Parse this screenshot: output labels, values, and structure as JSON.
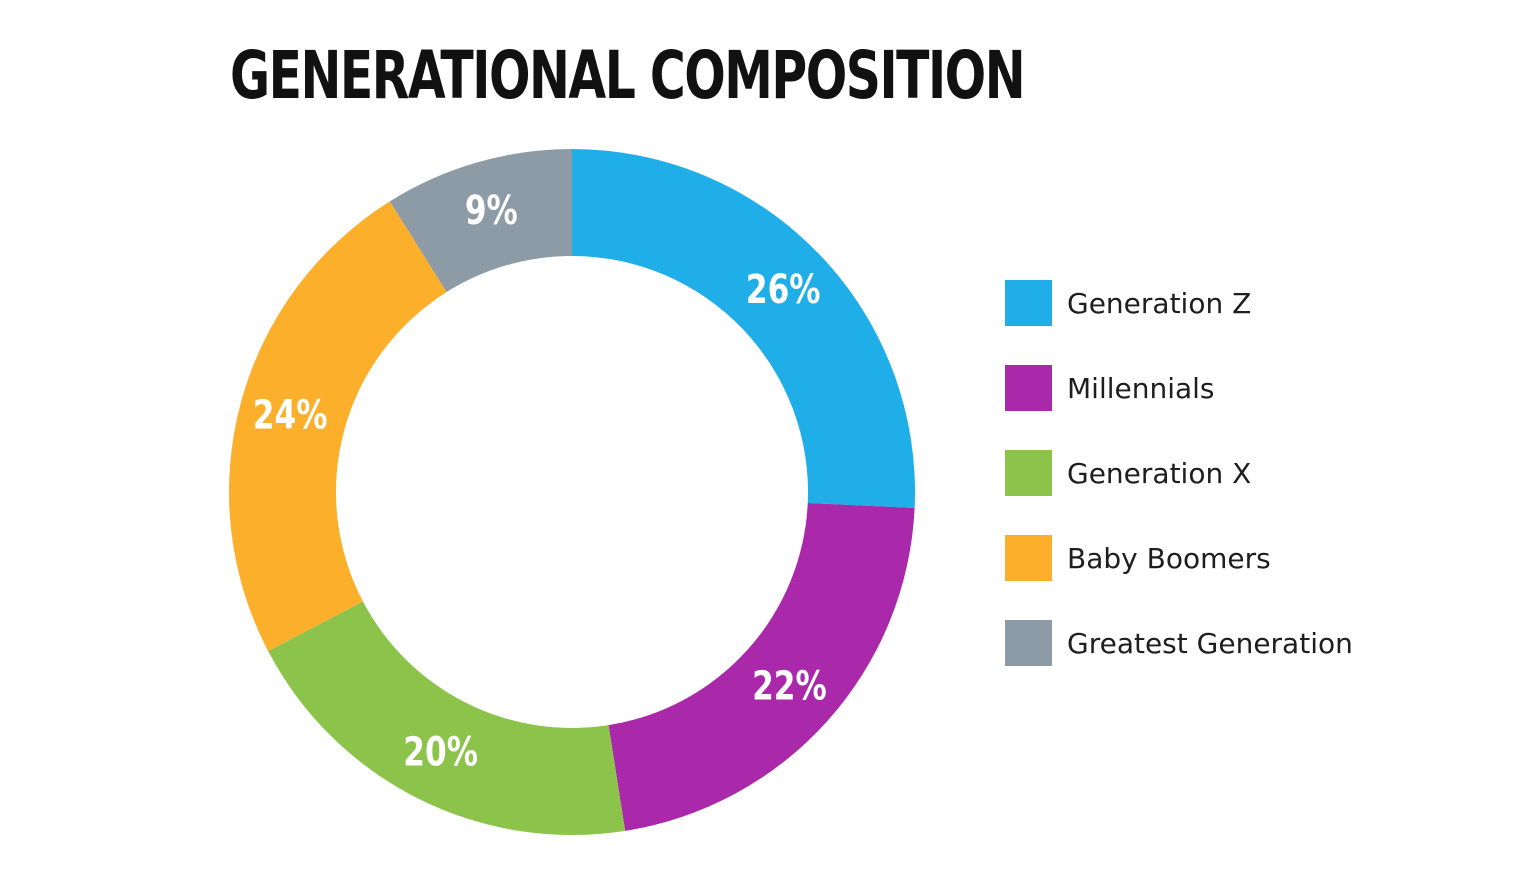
{
  "chart_data": {
    "type": "pie",
    "variant": "donut",
    "title": "GENERATIONAL COMPOSITION",
    "legend_position": "right",
    "slices": [
      {
        "label": "Generation Z",
        "value": 26,
        "display": "26%",
        "color": "#20aee8"
      },
      {
        "label": "Millennials",
        "value": 22,
        "display": "22%",
        "color": "#aa28aa"
      },
      {
        "label": "Generation X",
        "value": 20,
        "display": "20%",
        "color": "#8cc34a"
      },
      {
        "label": "Baby Boomers",
        "value": 24,
        "display": "24%",
        "color": "#fcaf2b"
      },
      {
        "label": "Greatest Generation",
        "value": 9,
        "display": "9%",
        "color": "#8d9ba6"
      }
    ]
  }
}
